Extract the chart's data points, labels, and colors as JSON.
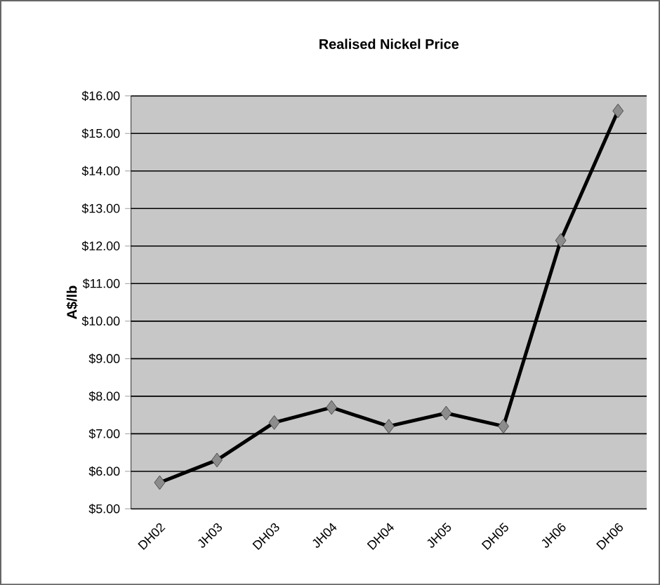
{
  "chart_data": {
    "type": "line",
    "title": "Realised Nickel Price",
    "ylabel": "A$/lb",
    "categories": [
      "DH02",
      "JH03",
      "DH03",
      "JH04",
      "DH04",
      "JH05",
      "DH05",
      "JH06",
      "DH06"
    ],
    "series": [
      {
        "color": "#000000",
        "values": [
          5.7,
          6.3,
          7.3,
          7.7,
          7.2,
          7.55,
          7.2,
          12.15,
          15.6
        ]
      }
    ],
    "ylim": [
      5,
      16
    ],
    "yticks": [
      {
        "value": 5,
        "label": "$5.00"
      },
      {
        "value": 6,
        "label": "$6.00"
      },
      {
        "value": 7,
        "label": "$7.00"
      },
      {
        "value": 8,
        "label": "$8.00"
      },
      {
        "value": 9,
        "label": "$9.00"
      },
      {
        "value": 10,
        "label": "$10.00"
      },
      {
        "value": 11,
        "label": "$11.00"
      },
      {
        "value": 12,
        "label": "$12.00"
      },
      {
        "value": 13,
        "label": "$13.00"
      },
      {
        "value": 14,
        "label": "$14.00"
      },
      {
        "value": 15,
        "label": "$15.00"
      },
      {
        "value": 16,
        "label": "$16.00"
      }
    ],
    "grid": "y",
    "marker": "diamond",
    "line_style": "solid"
  }
}
